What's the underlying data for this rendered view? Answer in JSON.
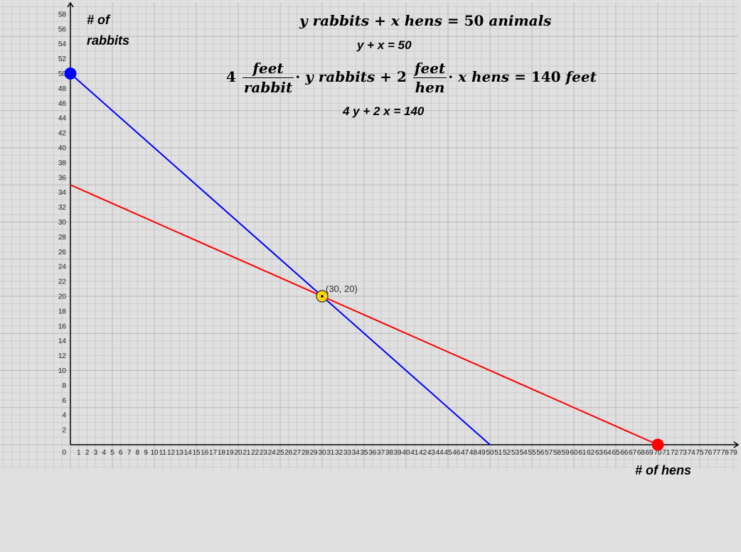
{
  "chart_data": {
    "type": "line",
    "xlabel": "# of hens",
    "ylabel_line1": "# of",
    "ylabel_line2": "rabbits",
    "xlim": [
      0,
      80
    ],
    "ylim": [
      0,
      60
    ],
    "grid": true,
    "x_ticks_label": [
      1,
      2,
      3,
      4,
      5,
      6,
      7,
      8,
      9,
      10,
      11,
      12,
      13,
      14,
      15,
      16,
      17,
      18,
      19,
      20,
      21,
      22,
      23,
      24,
      25,
      26,
      27,
      28,
      29,
      30,
      31,
      32,
      33,
      34,
      35,
      36,
      37,
      38,
      39,
      40,
      41,
      42,
      43,
      44,
      45,
      46,
      47,
      48,
      49,
      50,
      51,
      52,
      53,
      54,
      55,
      56,
      57,
      58,
      59,
      60,
      61,
      62,
      63,
      64,
      65,
      66,
      67,
      68,
      69,
      70,
      71,
      72,
      73,
      74,
      75,
      76,
      77,
      78,
      79
    ],
    "y_ticks_label": [
      2,
      4,
      6,
      8,
      10,
      12,
      14,
      16,
      18,
      20,
      22,
      24,
      26,
      28,
      30,
      32,
      34,
      36,
      38,
      40,
      42,
      44,
      46,
      48,
      50,
      52,
      54,
      56,
      58
    ],
    "origin_label": "0",
    "series": [
      {
        "color": "#0000ff",
        "points": [
          [
            0,
            50
          ],
          [
            50,
            0
          ]
        ]
      },
      {
        "color": "#ff0000",
        "points": [
          [
            0,
            35
          ],
          [
            70,
            0
          ]
        ]
      }
    ],
    "markers": [
      {
        "x": 0,
        "y": 50,
        "color": "#0000ff"
      },
      {
        "x": 70,
        "y": 0,
        "color": "#ff0000"
      },
      {
        "x": 30,
        "y": 20,
        "color": "#ffd700",
        "label": "(30, 20)"
      }
    ]
  },
  "equations": {
    "eq1_math": {
      "y": "y",
      "rabbits": "rabbits",
      "plus": "+",
      "x": "x",
      "hens": "hens",
      "equals": "=",
      "value": "50",
      "animals": "animals"
    },
    "eq1_simple": "y + x = 50",
    "eq2_math": {
      "coef1": "4",
      "num1": "feet",
      "den1": "rabbit",
      "dot": "·",
      "y": "y",
      "rabbits": "rabbits",
      "plus": "+",
      "coef2": "2",
      "num2": "feet",
      "den2": "hen",
      "x": "x",
      "hens": "hens",
      "equals": "=",
      "value": "140",
      "feet": "feet"
    },
    "eq2_simple": "4 y  + 2 x = 140"
  }
}
